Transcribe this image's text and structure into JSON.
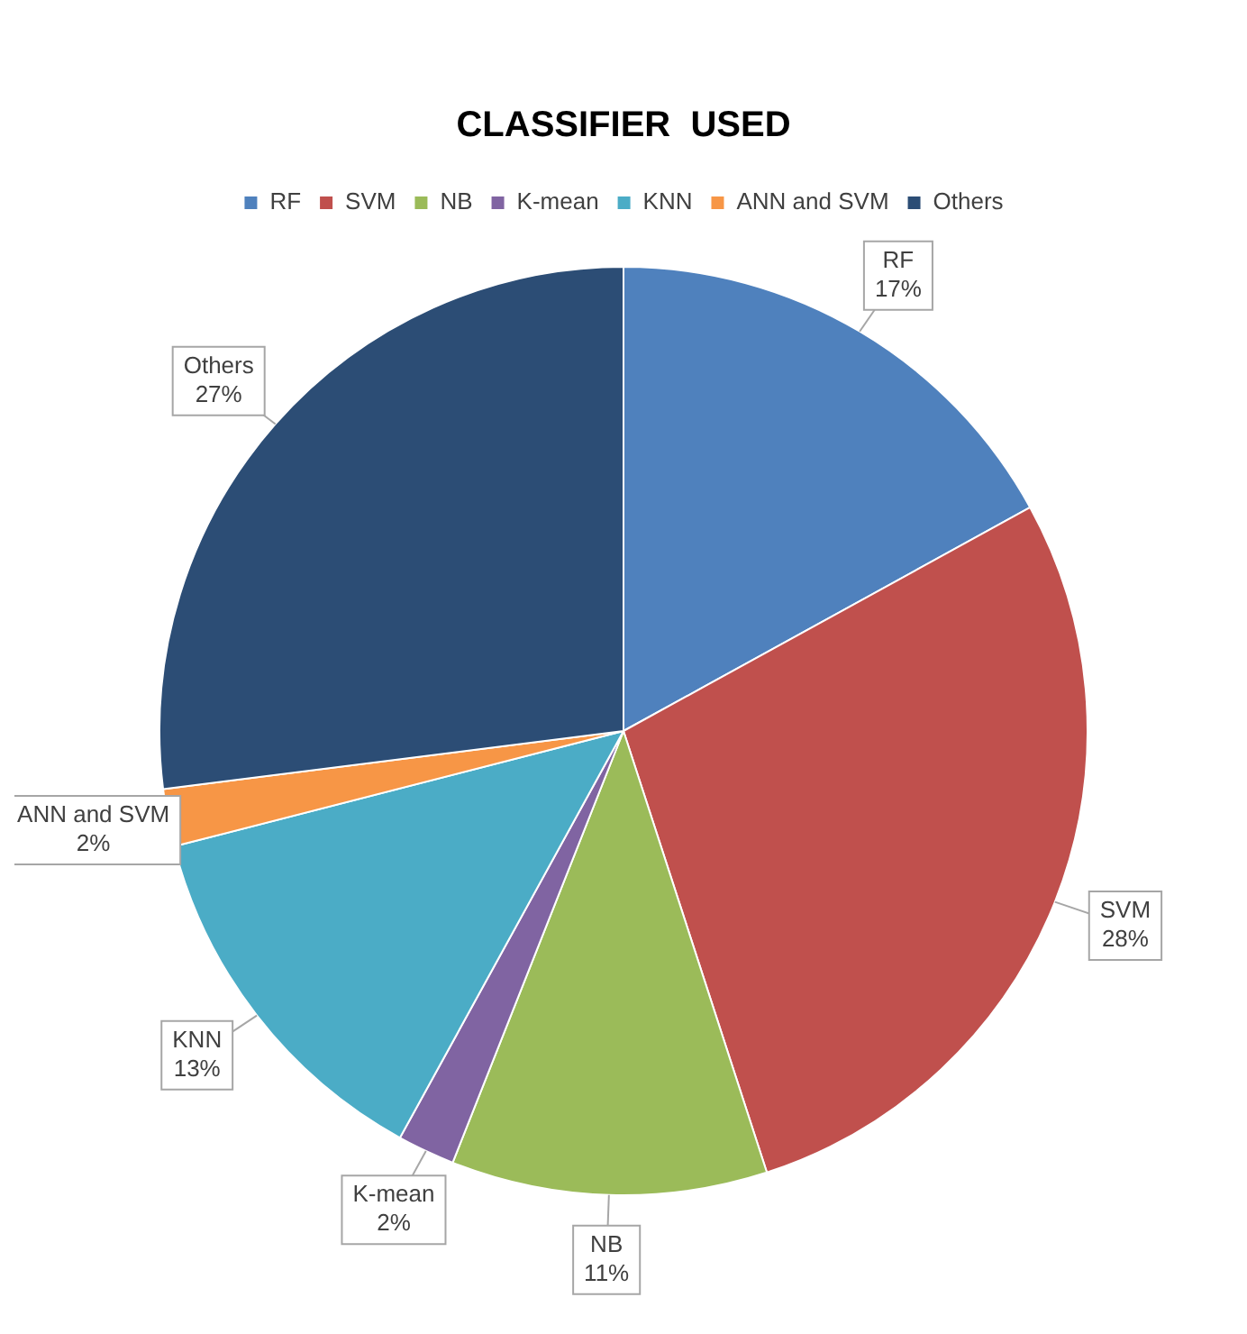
{
  "chart_data": {
    "type": "pie",
    "title": "CLASSIFIER  USED",
    "categories": [
      "RF",
      "SVM",
      "NB",
      "K-mean",
      "KNN",
      "ANN and SVM",
      "Others"
    ],
    "values": [
      17,
      28,
      11,
      2,
      13,
      2,
      27
    ],
    "colors": [
      "#4f81bd",
      "#c0504d",
      "#9bbb59",
      "#8064a2",
      "#4bacc6",
      "#f79646",
      "#2c4d75"
    ],
    "value_labels": [
      "17%",
      "28%",
      "11%",
      "2%",
      "13%",
      "2%",
      "27%"
    ],
    "legend": "top"
  }
}
